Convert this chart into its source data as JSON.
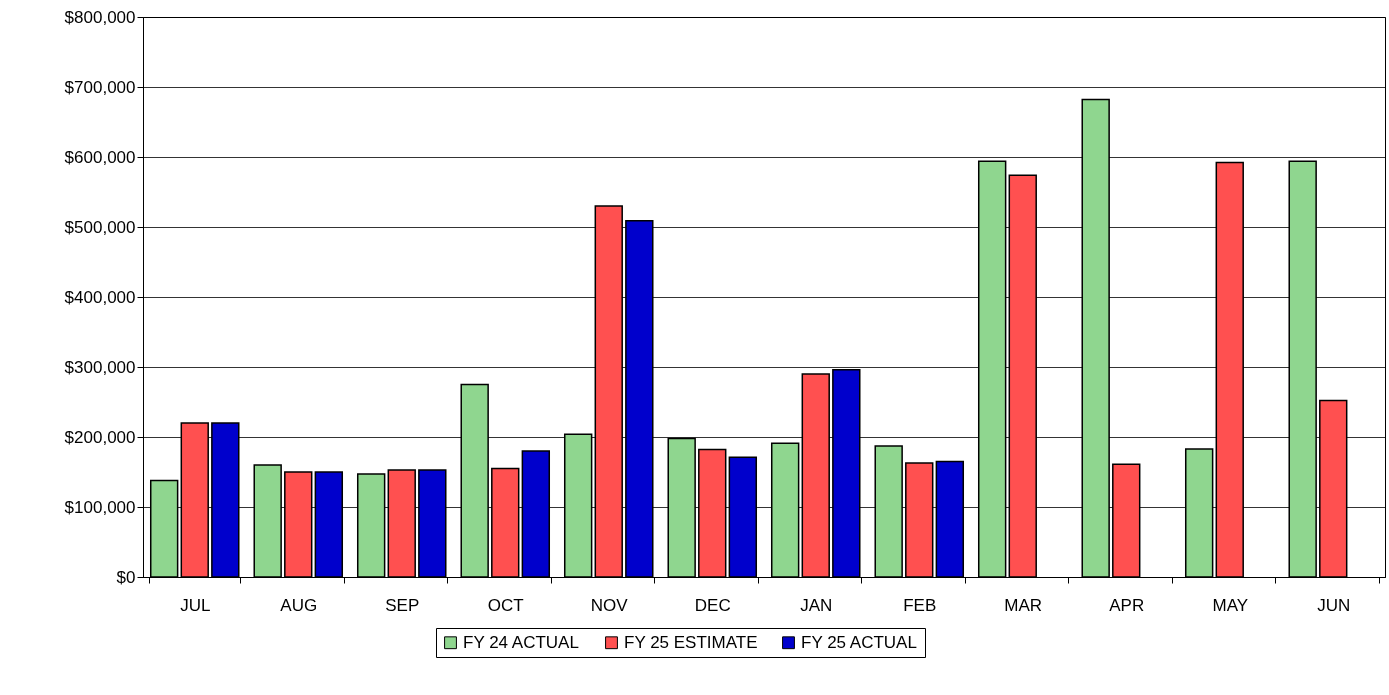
{
  "chart_data": {
    "type": "bar",
    "categories": [
      "JUL",
      "AUG",
      "SEP",
      "OCT",
      "NOV",
      "DEC",
      "JAN",
      "FEB",
      "MAR",
      "APR",
      "MAY",
      "JUN"
    ],
    "series": [
      {
        "name": "FY 24 ACTUAL",
        "color": "#8fd68f",
        "values": [
          138000,
          160000,
          147000,
          275000,
          204000,
          198000,
          191000,
          187000,
          594000,
          682000,
          183000,
          594000
        ]
      },
      {
        "name": "FY 25 ESTIMATE",
        "color": "#ff5050",
        "values": [
          220000,
          150000,
          153000,
          155000,
          530000,
          182000,
          290000,
          163000,
          574000,
          161000,
          592000,
          252000
        ]
      },
      {
        "name": "FY 25 ACTUAL",
        "color": "#0000cc",
        "values": [
          220000,
          150000,
          153000,
          180000,
          509000,
          171000,
          296000,
          165000,
          null,
          null,
          null,
          null
        ]
      }
    ],
    "ylim": [
      0,
      800000
    ],
    "yticks": [
      {
        "value": 0,
        "label": "$0"
      },
      {
        "value": 100000,
        "label": "$100,000"
      },
      {
        "value": 200000,
        "label": "$200,000"
      },
      {
        "value": 300000,
        "label": "$300,000"
      },
      {
        "value": 400000,
        "label": "$400,000"
      },
      {
        "value": 500000,
        "label": "$500,000"
      },
      {
        "value": 600000,
        "label": "$600,000"
      },
      {
        "value": 700000,
        "label": "$700,000"
      },
      {
        "value": 800000,
        "label": "$800,000"
      }
    ],
    "grid": "y",
    "legend": "bottom"
  }
}
